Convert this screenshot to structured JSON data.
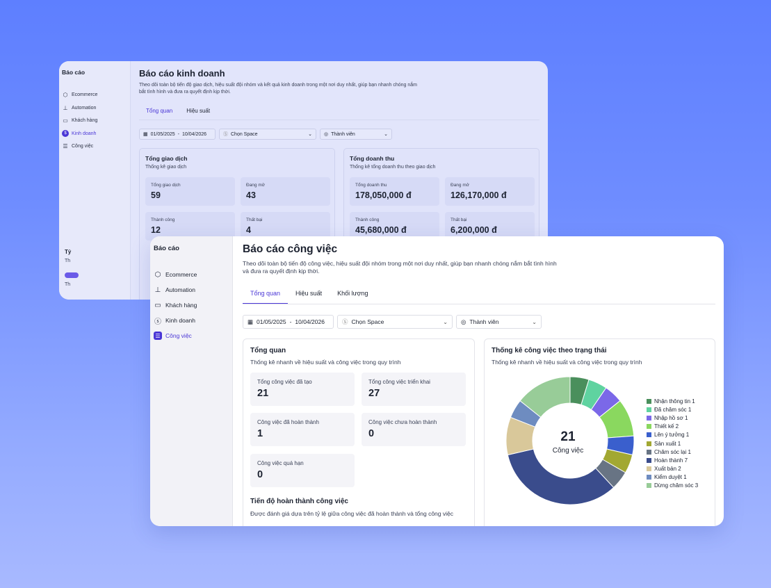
{
  "back_window": {
    "sidebar": {
      "title": "Báo cáo",
      "items": [
        {
          "label": "Ecommerce",
          "icon": "box-icon"
        },
        {
          "label": "Automation",
          "icon": "sitemap-icon"
        },
        {
          "label": "Khách hàng",
          "icon": "id-card-icon"
        },
        {
          "label": "Kinh doanh",
          "icon": "dollar-icon"
        },
        {
          "label": "Công việc",
          "icon": "tasks-icon"
        }
      ]
    },
    "title": "Báo cáo kinh doanh",
    "description": "Theo dõi toàn bộ tiến độ giao dịch, hiệu suất đội nhóm và kết quả kinh doanh trong một nơi duy nhất, giúp bạn nhanh chóng nắm bắt tình hình và đưa ra quyết định kịp thời.",
    "tabs": [
      "Tổng quan",
      "Hiệu suất"
    ],
    "filters": {
      "date_from": "01/05/2025",
      "date_sep": "-",
      "date_to": "10/04/2026",
      "space": "Chọn Space",
      "member": "Thành viên"
    },
    "card1": {
      "title": "Tổng giao dịch",
      "subtitle": "Thống kê giao dịch",
      "stats": [
        {
          "label": "Tổng giao dịch",
          "value": "59"
        },
        {
          "label": "Đang mở",
          "value": "43"
        },
        {
          "label": "Thành công",
          "value": "12"
        },
        {
          "label": "Thất bại",
          "value": "4"
        }
      ]
    },
    "card2": {
      "title": "Tổng doanh thu",
      "subtitle": "Thống kê tổng doanh thu theo giao dịch",
      "stats": [
        {
          "label": "Tổng doanh thu",
          "value": "178,050,000 đ"
        },
        {
          "label": "Đang mở",
          "value": "126,170,000 đ"
        },
        {
          "label": "Thành công",
          "value": "45,680,000 đ"
        },
        {
          "label": "Thất bại",
          "value": "6,200,000 đ"
        }
      ]
    },
    "partial_text": {
      "t1": "Tỷ",
      "t2": "Th",
      "t3": "Th"
    }
  },
  "front_window": {
    "sidebar": {
      "title": "Báo cáo",
      "items": [
        {
          "label": "Ecommerce",
          "icon": "box-icon"
        },
        {
          "label": "Automation",
          "icon": "sitemap-icon"
        },
        {
          "label": "Khách hàng",
          "icon": "id-card-icon"
        },
        {
          "label": "Kinh doanh",
          "icon": "dollar-icon"
        },
        {
          "label": "Công việc",
          "icon": "tasks-icon",
          "active": true
        }
      ]
    },
    "title": "Báo cáo công việc",
    "description": "Theo dõi toàn bộ tiến độ công việc, hiệu suất đội nhóm trong một nơi duy nhất, giúp bạn nhanh chóng nắm bắt tình hình và đưa ra quyết định kịp thời.",
    "tabs": [
      "Tổng quan",
      "Hiệu suất",
      "Khối lượng"
    ],
    "filters": {
      "date_from": "01/05/2025",
      "date_sep": "-",
      "date_to": "10/04/2026",
      "space": "Chọn Space",
      "member": "Thành viên"
    },
    "overview": {
      "title": "Tổng quan",
      "subtitle": "Thống kê nhanh về hiệu suất và công việc trong quy trình",
      "stats": [
        {
          "label": "Tổng công việc đã tạo",
          "value": "21"
        },
        {
          "label": "Tổng công việc triển khai",
          "value": "27"
        },
        {
          "label": "Công việc đã hoàn thành",
          "value": "1"
        },
        {
          "label": "Công việc chưa hoàn thành",
          "value": "0"
        },
        {
          "label": "Công việc quá hạn",
          "value": "0"
        }
      ],
      "progress_title": "Tiến độ hoàn thành công việc",
      "progress_desc": "Được đánh giá dựa trên tỷ lệ giữa công việc đã hoàn thành và tổng công việc"
    },
    "status_card": {
      "title": "Thống kê công việc theo trạng thái",
      "subtitle": "Thống kê nhanh về hiệu suất và công việc trong quy trình",
      "center_value": "21",
      "center_label": "Công việc"
    }
  },
  "chart_data": {
    "type": "pie",
    "title": "Thống kê công việc theo trạng thái",
    "donut": true,
    "total": 21,
    "series": [
      {
        "name": "Nhận thông tin",
        "value": 1,
        "color": "#4a8f5c"
      },
      {
        "name": "Đã chăm sóc",
        "value": 1,
        "color": "#5fd3a0"
      },
      {
        "name": "Nhập hồ sơ",
        "value": 1,
        "color": "#7b68e8"
      },
      {
        "name": "Thiết kế",
        "value": 2,
        "color": "#8ad85f"
      },
      {
        "name": "Lên ý tưởng",
        "value": 1,
        "color": "#3a5fcd"
      },
      {
        "name": "Sản xuất",
        "value": 1,
        "color": "#a2a832"
      },
      {
        "name": "Chăm sóc lại",
        "value": 1,
        "color": "#687484"
      },
      {
        "name": "Hoàn thành",
        "value": 7,
        "color": "#3a4c8c"
      },
      {
        "name": "Xuất bản",
        "value": 2,
        "color": "#d9c89a"
      },
      {
        "name": "Kiểm duyệt",
        "value": 1,
        "color": "#6e8cc0"
      },
      {
        "name": "Dừng chăm sóc",
        "value": 3,
        "color": "#98cc98"
      }
    ],
    "legend_position": "right"
  }
}
